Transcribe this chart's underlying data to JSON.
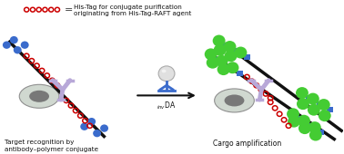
{
  "legend_text1": "His-Tag for conjugate purification",
  "legend_text2": "originating from His-Tag-RAFT agent",
  "left_caption": "Target recognition by\nantibody–polymer conjugate",
  "right_caption": "Cargo amplification",
  "bg_color": "#ffffff",
  "red_chain_color": "#cc0000",
  "blue_dot_color": "#3a6bcc",
  "blue_rect_color": "#3a6bcc",
  "green_dot_color": "#44cc33",
  "black_line_color": "#111111",
  "antibody_color": "#b8a8d8",
  "cell_outer_color": "#d0d8d0",
  "cell_inner_color": "#787878",
  "ball_color": "#d8d8d8",
  "ball_stand_color": "#3a6bcc"
}
